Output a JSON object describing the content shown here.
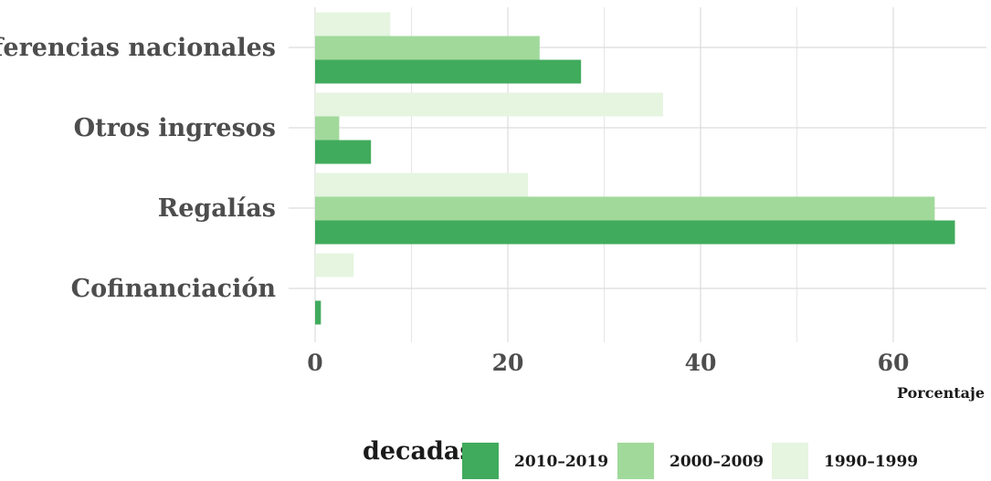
{
  "chart_data": {
    "type": "bar",
    "orientation": "horizontal",
    "categories": [
      "Cofinanciación",
      "Regalías",
      "Otros ingresos",
      "Transferencias nacionales"
    ],
    "series": [
      {
        "name": "2010–2019",
        "color": "#41ab5d",
        "values": [
          0.6,
          66.4,
          5.8,
          27.6
        ]
      },
      {
        "name": "2000–2009",
        "color": "#a1d99b",
        "values": [
          0.0,
          64.3,
          2.5,
          23.3
        ]
      },
      {
        "name": "1990–1999",
        "color": "#e5f5e0",
        "values": [
          4.0,
          22.1,
          36.1,
          7.8
        ]
      }
    ],
    "xlabel": "Porcentaje",
    "ylabel": "",
    "xlim": [
      0,
      69
    ],
    "xticks": [
      0,
      20,
      40,
      60
    ],
    "grid": true,
    "legend": {
      "title": "decadas",
      "position": "bottom"
    }
  }
}
